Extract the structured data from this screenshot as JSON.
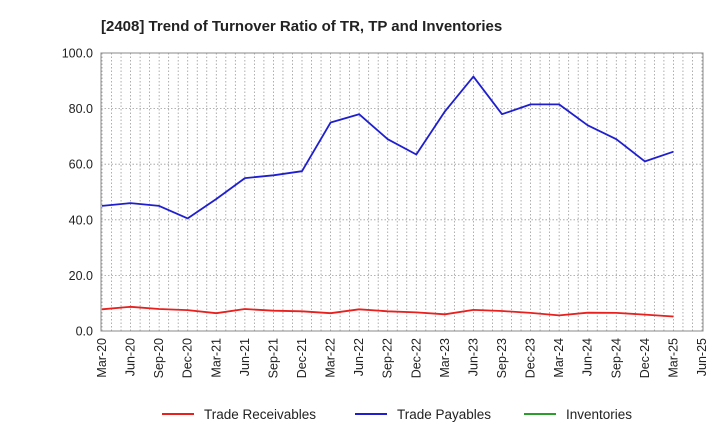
{
  "chart_data": {
    "type": "line",
    "title": "[2408]  Trend of Turnover Ratio of TR, TP and Inventories",
    "xlabel": "",
    "ylabel": "",
    "ylim": [
      0,
      100
    ],
    "yticks": [
      "0.0",
      "20.0",
      "40.0",
      "60.0",
      "80.0",
      "100.0"
    ],
    "xtick_labels": [
      "Mar-20",
      "Jun-20",
      "Sep-20",
      "Dec-20",
      "Mar-21",
      "Jun-21",
      "Sep-21",
      "Dec-21",
      "Mar-22",
      "Jun-22",
      "Sep-22",
      "Dec-22",
      "Mar-23",
      "Jun-23",
      "Sep-23",
      "Dec-23",
      "Mar-24",
      "Jun-24",
      "Sep-24",
      "Dec-24",
      "Mar-25",
      "Jun-25"
    ],
    "grid": true,
    "legend_position": "bottom",
    "colors": {
      "Trade Receivables": "#e8201e",
      "Trade Payables": "#1f1fcf",
      "Inventories": "#2a9d2a"
    },
    "series": [
      {
        "name": "Trade Receivables",
        "color": "#e8201e",
        "values": [
          7.8,
          8.7,
          7.9,
          7.5,
          6.4,
          7.9,
          7.3,
          7.1,
          6.4,
          7.8,
          7.1,
          6.7,
          6.0,
          7.6,
          7.2,
          6.5,
          5.6,
          6.6,
          6.5,
          5.9,
          5.2,
          null
        ]
      },
      {
        "name": "Trade Payables",
        "color": "#1f1fcf",
        "values": [
          45.0,
          46.0,
          45.0,
          40.5,
          47.5,
          55.0,
          56.0,
          57.5,
          75.0,
          78.0,
          69.0,
          63.5,
          79.0,
          91.5,
          78.0,
          81.5,
          81.5,
          74.0,
          69.0,
          61.0,
          64.5,
          null
        ]
      },
      {
        "name": "Inventories",
        "color": "#2a9d2a",
        "values": []
      }
    ]
  }
}
